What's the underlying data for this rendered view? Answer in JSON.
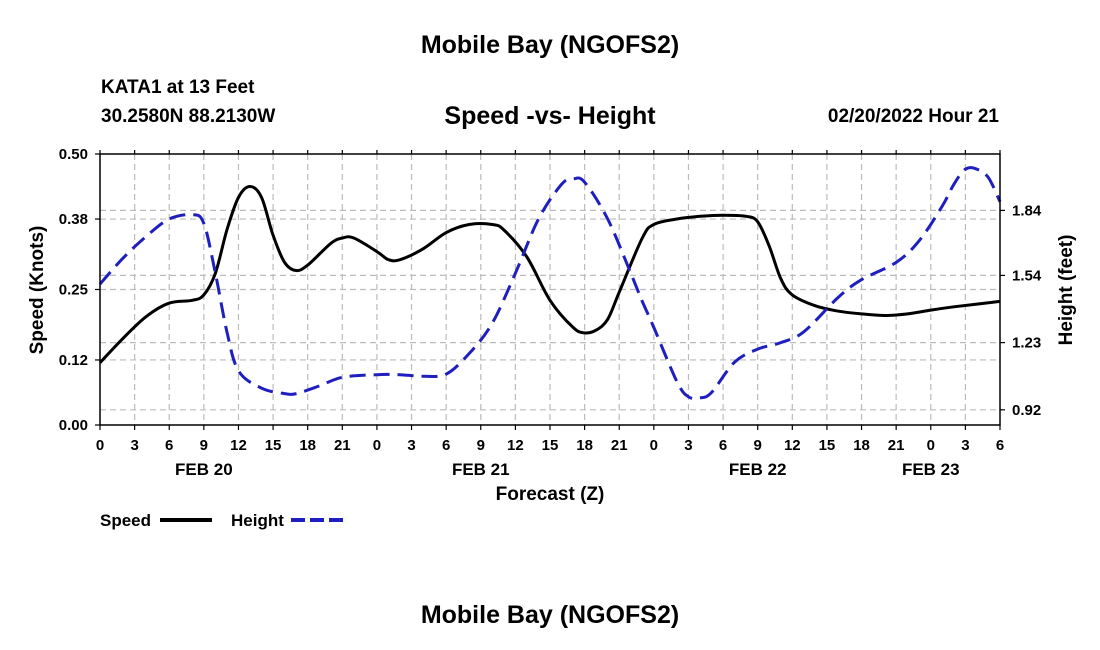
{
  "header": {
    "title": "Mobile Bay (NGOFS2)",
    "station": "KATA1 at 13 Feet",
    "coords": "30.2580N  88.2130W",
    "subtitle": "Speed -vs- Height",
    "datetime": "02/20/2022 Hour 21"
  },
  "footer": {
    "title": "Mobile Bay (NGOFS2)"
  },
  "chart_data": {
    "type": "line",
    "title": "Speed -vs- Height",
    "xlabel": "Forecast (Z)",
    "ylabel": "Speed (Knots)",
    "y2label": "Height (feet)",
    "x_hours": [
      0,
      3,
      6,
      9,
      12,
      15,
      18,
      21,
      24,
      27,
      30,
      33,
      36,
      39,
      42,
      45,
      48,
      51,
      54,
      57,
      60,
      63,
      66,
      69,
      72,
      75,
      78
    ],
    "x_tick_labels": [
      "0",
      "3",
      "6",
      "9",
      "12",
      "15",
      "18",
      "21",
      "0",
      "3",
      "6",
      "9",
      "12",
      "15",
      "18",
      "21",
      "0",
      "3",
      "6",
      "9",
      "12",
      "15",
      "18",
      "21",
      "0",
      "3",
      "6"
    ],
    "date_labels": [
      {
        "hour": 9,
        "label": "FEB 20"
      },
      {
        "hour": 33,
        "label": "FEB 21"
      },
      {
        "hour": 57,
        "label": "FEB 22"
      },
      {
        "hour": 72,
        "label": "FEB 23"
      }
    ],
    "xlim": [
      0,
      78
    ],
    "ylim": [
      0,
      0.5
    ],
    "y_ticks": [
      0.0,
      0.12,
      0.25,
      0.38,
      0.5
    ],
    "y_tick_labels": [
      "0.00",
      "0.12",
      "0.25",
      "0.38",
      "0.50"
    ],
    "y2lim": [
      0.85,
      2.1
    ],
    "y2_ticks": [
      0.92,
      1.23,
      1.54,
      1.84
    ],
    "y2_tick_labels": [
      "0.92",
      "1.23",
      "1.54",
      "1.84"
    ],
    "grid": true,
    "legend_position": "bottom-left",
    "series": [
      {
        "name": "Speed",
        "axis": "left",
        "color": "#000000",
        "dash": "solid",
        "points": [
          [
            0,
            0.115
          ],
          [
            2,
            0.16
          ],
          [
            4,
            0.2
          ],
          [
            6,
            0.225
          ],
          [
            8,
            0.23
          ],
          [
            9,
            0.24
          ],
          [
            10,
            0.28
          ],
          [
            11,
            0.36
          ],
          [
            12,
            0.42
          ],
          [
            13,
            0.44
          ],
          [
            14,
            0.42
          ],
          [
            15,
            0.35
          ],
          [
            16,
            0.3
          ],
          [
            17,
            0.285
          ],
          [
            18,
            0.295
          ],
          [
            20,
            0.335
          ],
          [
            21,
            0.345
          ],
          [
            22,
            0.345
          ],
          [
            24,
            0.32
          ],
          [
            25,
            0.305
          ],
          [
            26,
            0.305
          ],
          [
            28,
            0.325
          ],
          [
            30,
            0.355
          ],
          [
            32,
            0.37
          ],
          [
            34,
            0.37
          ],
          [
            35,
            0.36
          ],
          [
            37,
            0.31
          ],
          [
            39,
            0.23
          ],
          [
            41,
            0.18
          ],
          [
            42,
            0.17
          ],
          [
            43,
            0.175
          ],
          [
            44,
            0.195
          ],
          [
            45,
            0.245
          ],
          [
            47,
            0.345
          ],
          [
            48,
            0.37
          ],
          [
            50,
            0.38
          ],
          [
            52,
            0.385
          ],
          [
            54,
            0.387
          ],
          [
            56,
            0.385
          ],
          [
            57,
            0.375
          ],
          [
            58,
            0.33
          ],
          [
            59,
            0.27
          ],
          [
            60,
            0.24
          ],
          [
            62,
            0.22
          ],
          [
            64,
            0.21
          ],
          [
            66,
            0.205
          ],
          [
            68,
            0.202
          ],
          [
            70,
            0.205
          ],
          [
            72,
            0.212
          ],
          [
            74,
            0.218
          ],
          [
            76,
            0.223
          ],
          [
            78,
            0.228
          ]
        ]
      },
      {
        "name": "Height",
        "axis": "right",
        "color": "#1f1fbf",
        "dash": "dashed",
        "points": [
          [
            0,
            1.5
          ],
          [
            2,
            1.62
          ],
          [
            4,
            1.72
          ],
          [
            6,
            1.8
          ],
          [
            8,
            1.82
          ],
          [
            9,
            1.78
          ],
          [
            10,
            1.55
          ],
          [
            11,
            1.28
          ],
          [
            12,
            1.1
          ],
          [
            14,
            1.02
          ],
          [
            16,
            0.995
          ],
          [
            17,
            0.995
          ],
          [
            19,
            1.03
          ],
          [
            21,
            1.07
          ],
          [
            24,
            1.082
          ],
          [
            26,
            1.082
          ],
          [
            28,
            1.075
          ],
          [
            30,
            1.085
          ],
          [
            32,
            1.18
          ],
          [
            34,
            1.32
          ],
          [
            36,
            1.55
          ],
          [
            38,
            1.8
          ],
          [
            40,
            1.96
          ],
          [
            41,
            1.985
          ],
          [
            42,
            1.97
          ],
          [
            44,
            1.8
          ],
          [
            46,
            1.55
          ],
          [
            47,
            1.42
          ],
          [
            48,
            1.3
          ],
          [
            50,
            1.05
          ],
          [
            51,
            0.98
          ],
          [
            52,
            0.975
          ],
          [
            53,
            1.0
          ],
          [
            55,
            1.14
          ],
          [
            57,
            1.2
          ],
          [
            59,
            1.23
          ],
          [
            61,
            1.28
          ],
          [
            64,
            1.44
          ],
          [
            66,
            1.52
          ],
          [
            69,
            1.6
          ],
          [
            71,
            1.7
          ],
          [
            73,
            1.86
          ],
          [
            74,
            1.96
          ],
          [
            75,
            2.03
          ],
          [
            76,
            2.03
          ],
          [
            77,
            1.99
          ],
          [
            78,
            1.88
          ]
        ]
      }
    ]
  }
}
